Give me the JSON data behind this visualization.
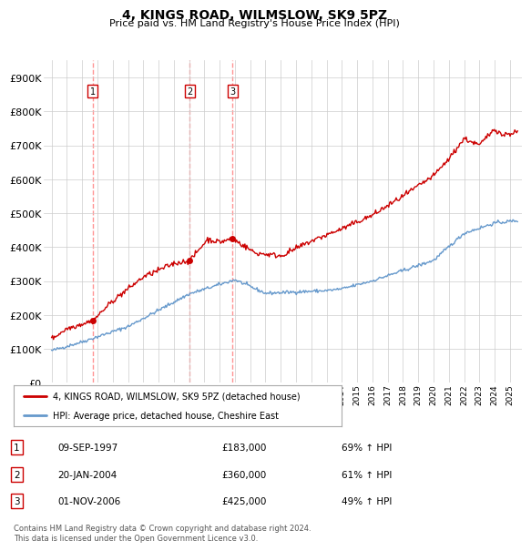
{
  "title": "4, KINGS ROAD, WILMSLOW, SK9 5PZ",
  "subtitle": "Price paid vs. HM Land Registry's House Price Index (HPI)",
  "ylabel_ticks": [
    "£0",
    "£100K",
    "£200K",
    "£300K",
    "£400K",
    "£500K",
    "£600K",
    "£700K",
    "£800K",
    "£900K"
  ],
  "ytick_values": [
    0,
    100000,
    200000,
    300000,
    400000,
    500000,
    600000,
    700000,
    800000,
    900000
  ],
  "ylim": [
    0,
    950000
  ],
  "xlim_start": 1994.5,
  "xlim_end": 2025.8,
  "sale_dates": [
    1997.69,
    2004.05,
    2006.84
  ],
  "sale_prices": [
    183000,
    360000,
    425000
  ],
  "sale_labels": [
    "1",
    "2",
    "3"
  ],
  "sale_info": [
    {
      "label": "1",
      "date": "09-SEP-1997",
      "price": "£183,000",
      "hpi": "69% ↑ HPI"
    },
    {
      "label": "2",
      "date": "20-JAN-2004",
      "price": "£360,000",
      "hpi": "61% ↑ HPI"
    },
    {
      "label": "3",
      "date": "01-NOV-2006",
      "price": "£425,000",
      "hpi": "49% ↑ HPI"
    }
  ],
  "line1_color": "#cc0000",
  "line2_color": "#6699cc",
  "vline_color": "#ff8888",
  "sale_marker_color": "#cc0000",
  "legend1_label": "4, KINGS ROAD, WILMSLOW, SK9 5PZ (detached house)",
  "legend2_label": "HPI: Average price, detached house, Cheshire East",
  "footnote": "Contains HM Land Registry data © Crown copyright and database right 2024.\nThis data is licensed under the Open Government Licence v3.0.",
  "background_color": "#ffffff",
  "grid_color": "#cccccc"
}
